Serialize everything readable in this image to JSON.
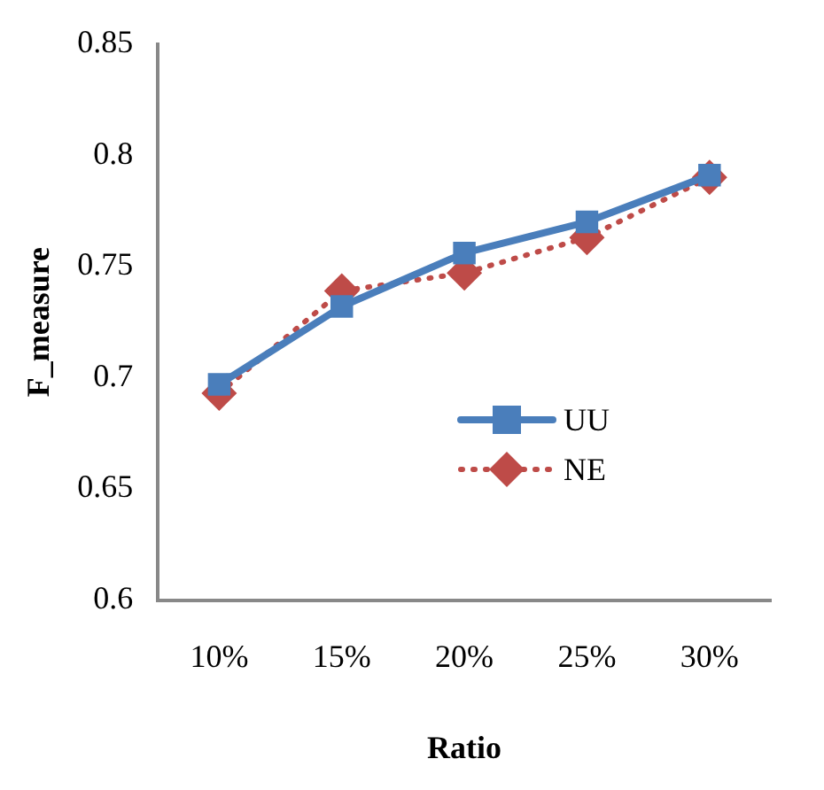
{
  "chart_data": {
    "type": "line",
    "xlabel": "Ratio",
    "ylabel": "F_measure",
    "categories": [
      "10%",
      "15%",
      "20%",
      "25%",
      "30%"
    ],
    "series": [
      {
        "name": "UU",
        "color": "#4a7ebb",
        "values": [
          0.697,
          0.732,
          0.756,
          0.77,
          0.791
        ],
        "marker": "square",
        "line_style": "solid"
      },
      {
        "name": "NE",
        "color": "#be4b48",
        "values": [
          0.693,
          0.739,
          0.747,
          0.763,
          0.79
        ],
        "marker": "diamond",
        "line_style": "dotted"
      }
    ],
    "ylim": [
      0.6,
      0.85
    ],
    "yticks": [
      0.6,
      0.65,
      0.7,
      0.75,
      0.8,
      0.85
    ],
    "grid": false,
    "legend": "center right"
  }
}
